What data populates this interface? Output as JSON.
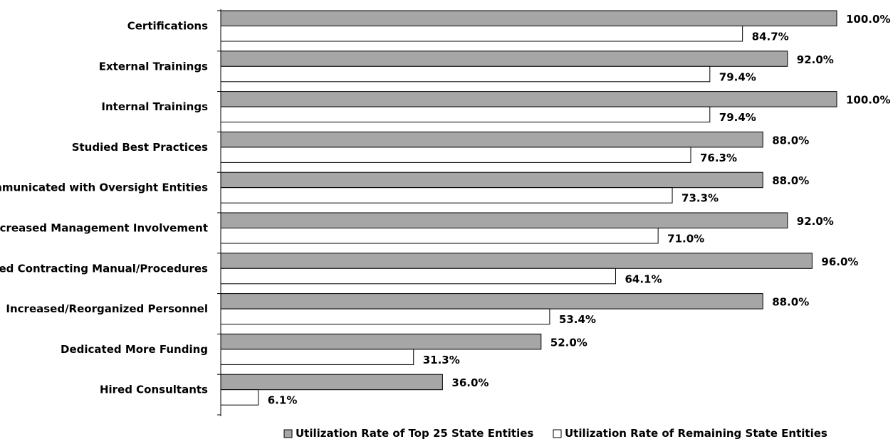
{
  "chart_data": {
    "type": "bar",
    "orientation": "horizontal",
    "categories": [
      "Certifications",
      "External Trainings",
      "Internal Trainings",
      "Studied Best Practices",
      "Communicated with Oversight Entities",
      "Increased Management Involvement",
      "Revised Contracting Manual/Procedures",
      "Increased/Reorganized Personnel",
      "Dedicated More Funding",
      "Hired Consultants"
    ],
    "series": [
      {
        "name": "Utilization Rate of Top 25 State Entities",
        "values": [
          100.0,
          92.0,
          100.0,
          88.0,
          88.0,
          92.0,
          96.0,
          88.0,
          52.0,
          36.0
        ],
        "labels": [
          "100.0%",
          "92.0%",
          "100.0%",
          "88.0%",
          "88.0%",
          "92.0%",
          "96.0%",
          "88.0%",
          "52.0%",
          "36.0%"
        ],
        "color": "#a6a6a6"
      },
      {
        "name": "Utilization Rate of Remaining State Entities",
        "values": [
          84.7,
          79.4,
          79.4,
          76.3,
          73.3,
          71.0,
          64.1,
          53.4,
          31.3,
          6.1
        ],
        "labels": [
          "84.7%",
          "79.4%",
          "79.4%",
          "76.3%",
          "73.3%",
          "71.0%",
          "64.1%",
          "53.4%",
          "31.3%",
          "6.1%"
        ],
        "color": "#ffffff"
      }
    ],
    "xlim": [
      0,
      100
    ],
    "unit": "%",
    "grid": false,
    "legend_position": "bottom"
  }
}
